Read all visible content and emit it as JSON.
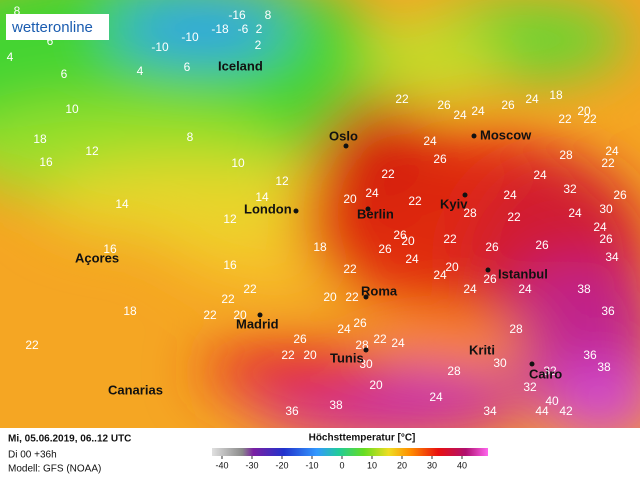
{
  "logo": "wetteronline",
  "cities": [
    "Iceland",
    "Oslo",
    "Moscow",
    "London",
    "Berlin",
    "Kyiv",
    "Açores",
    "Madrid",
    "Roma",
    "Istanbul",
    "Kriti",
    "Tunis",
    "Canarias",
    "Cairo"
  ],
  "temperatures": [
    -16,
    8,
    -18,
    -6,
    2,
    -10,
    -10,
    2,
    8,
    4,
    6,
    6,
    4,
    6,
    10,
    12,
    16,
    18,
    14,
    16,
    18,
    22,
    22,
    20,
    22,
    8,
    10,
    12,
    14,
    12,
    18,
    20,
    22,
    26,
    24,
    26,
    22,
    24,
    24,
    18,
    22,
    22,
    20,
    24,
    26,
    24,
    28,
    26,
    22,
    26,
    28,
    22,
    24,
    26,
    24,
    32,
    30,
    34,
    24,
    26,
    24,
    22,
    20,
    24,
    26,
    26,
    22,
    24,
    24,
    20,
    22,
    20,
    24,
    26,
    24,
    28,
    32,
    36,
    38,
    30,
    26,
    24,
    22,
    26,
    28,
    30,
    36,
    38,
    36,
    38,
    40,
    44,
    42,
    34,
    32,
    28,
    24,
    20,
    22,
    24,
    20,
    22,
    16,
    22
  ],
  "footer": {
    "date": "Mi, 05.06.2019, 06..12 UTC",
    "run": "Di 00 +36h",
    "model": "Modell: GFS (NOAA)"
  },
  "legend": {
    "title": "Höchsttemperatur [°C]",
    "ticks": [
      -40,
      -30,
      -20,
      -10,
      0,
      10,
      20,
      30,
      40
    ]
  }
}
